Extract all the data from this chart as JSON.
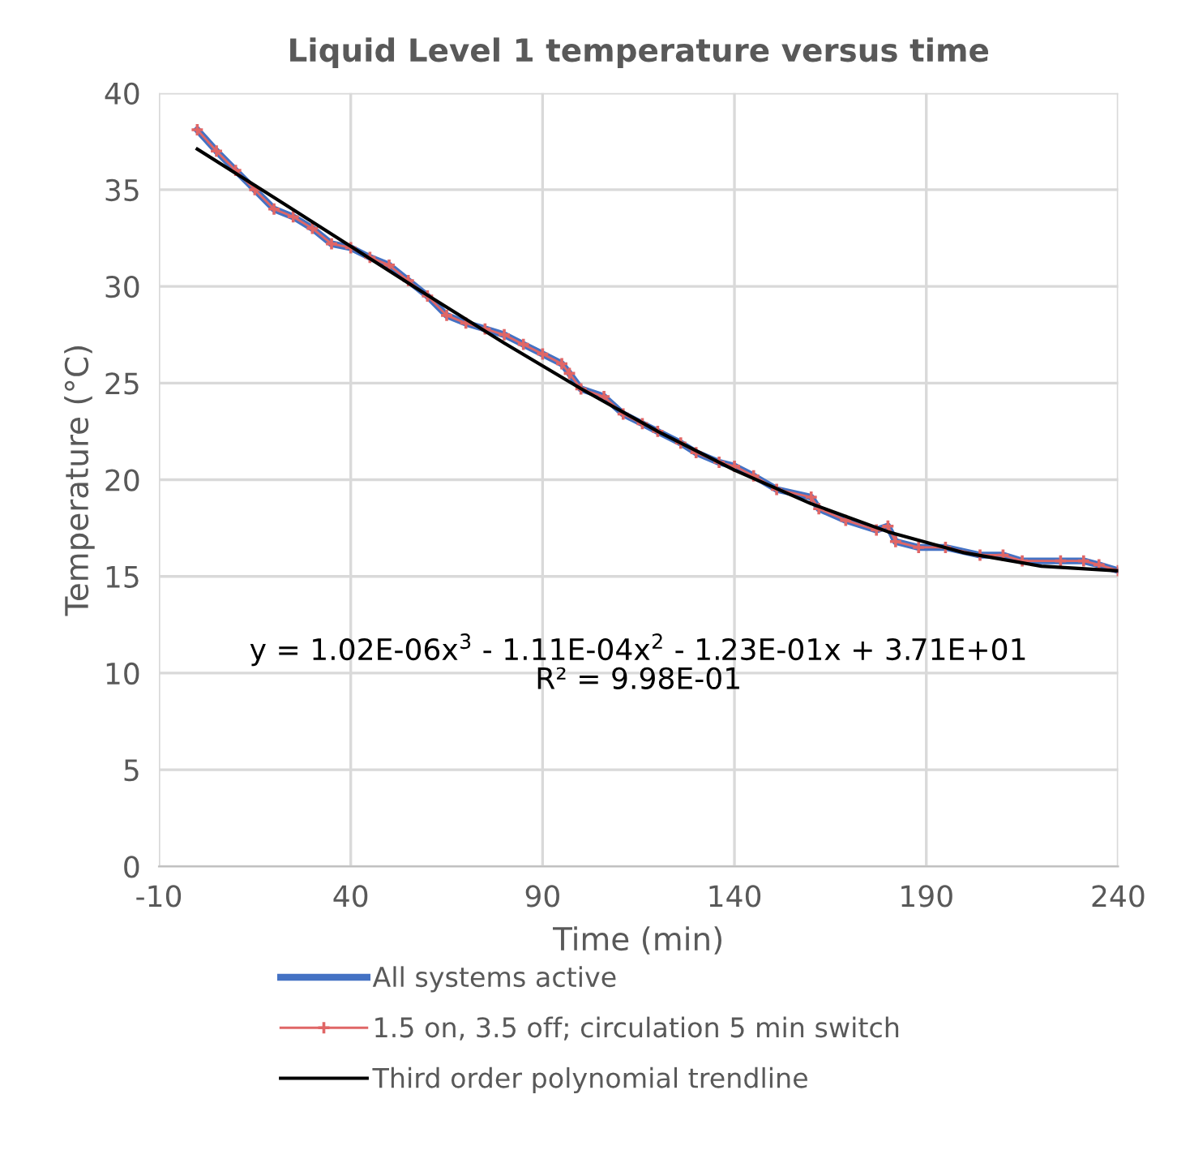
{
  "chart_data": {
    "type": "line",
    "title": "Liquid Level 1 temperature versus time",
    "xlabel": "Time (min)",
    "ylabel": "Temperature (°C)",
    "xlim": [
      -10,
      240
    ],
    "xticks": [
      -10,
      40,
      90,
      140,
      190,
      240
    ],
    "ylim": [
      0,
      40
    ],
    "yticks": [
      0,
      5,
      10,
      15,
      20,
      25,
      30,
      35,
      40
    ],
    "grid": true,
    "legend": "bottom",
    "line_style": "solid",
    "annotations": [
      "y = 1.02E-06x$^{3}$ - 1.11E-04x$^{2}$ - 1.23E-01x + 3.71E+01",
      "R² = 9.98E-01"
    ],
    "series": [
      {
        "name": "All systems active",
        "color": "#4472c4",
        "marker": "none",
        "x": [
          0,
          5,
          10,
          15,
          20,
          25,
          30,
          35,
          40,
          45,
          50,
          55,
          60,
          65,
          70,
          75,
          80,
          85,
          90,
          95,
          97,
          100,
          106,
          111,
          116,
          120,
          126,
          130,
          136,
          140,
          145,
          151,
          160,
          162,
          169,
          177,
          180,
          182,
          188,
          195,
          204,
          210,
          215,
          225,
          231,
          235,
          240
        ],
        "values": [
          38.1,
          37.0,
          36.0,
          35.0,
          34.0,
          33.6,
          33.0,
          32.2,
          32.0,
          31.5,
          31.1,
          30.3,
          29.5,
          28.5,
          28.1,
          27.8,
          27.5,
          27.0,
          26.5,
          26.0,
          25.5,
          24.7,
          24.3,
          23.4,
          22.9,
          22.5,
          21.9,
          21.4,
          20.9,
          20.7,
          20.2,
          19.5,
          19.1,
          18.5,
          17.9,
          17.4,
          17.6,
          16.8,
          16.5,
          16.5,
          16.1,
          16.1,
          15.8,
          15.8,
          15.8,
          15.6,
          15.3
        ]
      },
      {
        "name": "1.5 on, 3.5 off; circulation 5 min switch",
        "color": "#e06666",
        "marker": "cross",
        "x": [
          0,
          5,
          10,
          15,
          20,
          25,
          30,
          35,
          40,
          45,
          50,
          55,
          60,
          65,
          70,
          75,
          80,
          85,
          90,
          95,
          97,
          100,
          106,
          111,
          116,
          120,
          126,
          130,
          136,
          140,
          145,
          151,
          160,
          162,
          169,
          177,
          180,
          182,
          188,
          195,
          204,
          210,
          215,
          225,
          231,
          235,
          240
        ],
        "values": [
          38.1,
          37.0,
          36.0,
          35.0,
          34.0,
          33.6,
          33.0,
          32.2,
          32.0,
          31.5,
          31.1,
          30.3,
          29.5,
          28.5,
          28.1,
          27.8,
          27.5,
          27.0,
          26.5,
          26.0,
          25.5,
          24.7,
          24.3,
          23.4,
          22.9,
          22.5,
          21.9,
          21.4,
          20.9,
          20.7,
          20.2,
          19.5,
          19.1,
          18.5,
          17.9,
          17.4,
          17.6,
          16.8,
          16.5,
          16.5,
          16.1,
          16.1,
          15.8,
          15.8,
          15.8,
          15.6,
          15.3
        ]
      },
      {
        "name": "Third order polynomial trendline",
        "color": "#000000",
        "marker": "none",
        "x": [
          0,
          20,
          40,
          60,
          80,
          100,
          120,
          140,
          160,
          180,
          200,
          220,
          240
        ],
        "values": [
          37.1,
          34.6,
          32.07,
          29.54,
          27.07,
          24.71,
          22.5,
          20.5,
          18.76,
          17.31,
          16.22,
          15.53,
          15.29
        ]
      }
    ]
  }
}
